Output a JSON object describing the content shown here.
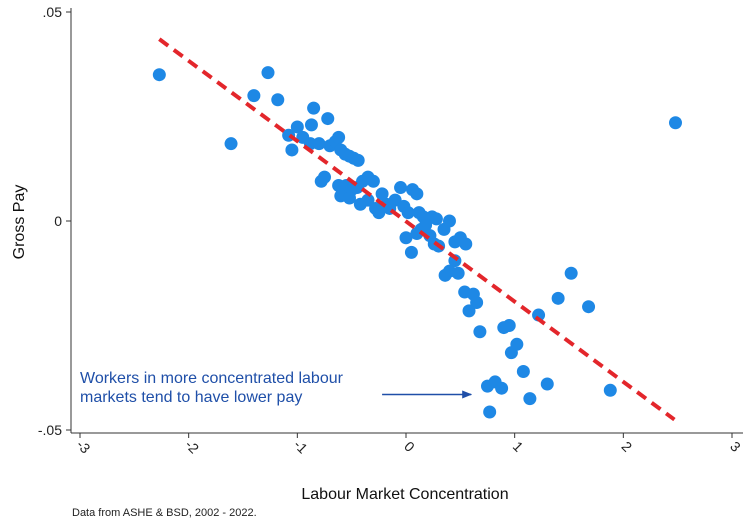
{
  "chart_data": {
    "type": "scatter",
    "xlabel": "Labour Market Concentration",
    "ylabel": "Gross Pay",
    "xlim": [
      -3,
      3
    ],
    "ylim": [
      -0.05,
      0.05
    ],
    "x_ticks": [
      -3,
      -2,
      -1,
      0,
      1,
      2,
      3
    ],
    "x_tick_labels": [
      "-3",
      "-2",
      "-1",
      "0",
      "1",
      "2",
      "3"
    ],
    "y_ticks": [
      -0.05,
      0,
      0.05
    ],
    "y_tick_labels": [
      "-.05",
      "0",
      ".05"
    ],
    "grid": false,
    "series": [
      {
        "color": "#1e88e5",
        "points": [
          [
            -2.27,
            0.035
          ],
          [
            -1.61,
            0.0185
          ],
          [
            -1.27,
            0.0355
          ],
          [
            -1.4,
            0.03
          ],
          [
            -1.18,
            0.029
          ],
          [
            -1.08,
            0.0205
          ],
          [
            -1.0,
            0.0225
          ],
          [
            -1.05,
            0.017
          ],
          [
            -0.95,
            0.02
          ],
          [
            -0.88,
            0.0185
          ],
          [
            -0.85,
            0.027
          ],
          [
            -0.87,
            0.023
          ],
          [
            -0.8,
            0.0185
          ],
          [
            -0.72,
            0.0245
          ],
          [
            -0.7,
            0.018
          ],
          [
            -0.65,
            0.019
          ],
          [
            -0.62,
            0.02
          ],
          [
            -0.6,
            0.017
          ],
          [
            -0.56,
            0.016
          ],
          [
            -0.52,
            0.0155
          ],
          [
            -0.48,
            0.015
          ],
          [
            -0.44,
            0.0145
          ],
          [
            -0.78,
            0.0095
          ],
          [
            -0.75,
            0.0105
          ],
          [
            -0.62,
            0.0085
          ],
          [
            -0.55,
            0.0085
          ],
          [
            -0.5,
            0.0075
          ],
          [
            -0.45,
            0.008
          ],
          [
            -0.4,
            0.0095
          ],
          [
            -0.35,
            0.0105
          ],
          [
            -0.3,
            0.0095
          ],
          [
            -0.6,
            0.006
          ],
          [
            -0.52,
            0.0055
          ],
          [
            -0.42,
            0.004
          ],
          [
            -0.35,
            0.005
          ],
          [
            -0.28,
            0.003
          ],
          [
            -0.22,
            0.0065
          ],
          [
            -0.18,
            0.004
          ],
          [
            -0.15,
            0.003
          ],
          [
            -0.1,
            0.005
          ],
          [
            -0.05,
            0.008
          ],
          [
            -0.02,
            0.0035
          ],
          [
            0.02,
            0.002
          ],
          [
            0.06,
            0.0075
          ],
          [
            0.1,
            0.0065
          ],
          [
            0.12,
            0.002
          ],
          [
            0.16,
            0.001
          ],
          [
            0.2,
            0.0005
          ],
          [
            0.24,
            0.001
          ],
          [
            0.28,
            0.0005
          ],
          [
            -0.25,
            0.002
          ],
          [
            0.0,
            -0.004
          ],
          [
            0.05,
            -0.0075
          ],
          [
            0.1,
            -0.003
          ],
          [
            0.14,
            -0.002
          ],
          [
            0.18,
            -0.001
          ],
          [
            0.22,
            -0.0035
          ],
          [
            0.26,
            -0.0055
          ],
          [
            0.3,
            -0.006
          ],
          [
            0.35,
            -0.002
          ],
          [
            0.4,
            0.0
          ],
          [
            0.45,
            -0.005
          ],
          [
            0.5,
            -0.004
          ],
          [
            0.55,
            -0.0055
          ],
          [
            0.45,
            -0.0095
          ],
          [
            0.4,
            -0.012
          ],
          [
            0.36,
            -0.013
          ],
          [
            0.48,
            -0.0125
          ],
          [
            0.54,
            -0.017
          ],
          [
            0.62,
            -0.0175
          ],
          [
            0.65,
            -0.0195
          ],
          [
            0.58,
            -0.0215
          ],
          [
            0.68,
            -0.0265
          ],
          [
            0.9,
            -0.0255
          ],
          [
            0.95,
            -0.025
          ],
          [
            0.97,
            -0.0315
          ],
          [
            1.02,
            -0.0295
          ],
          [
            1.22,
            -0.0225
          ],
          [
            1.4,
            -0.0185
          ],
          [
            1.52,
            -0.0125
          ],
          [
            1.68,
            -0.0205
          ],
          [
            0.75,
            -0.0395
          ],
          [
            0.82,
            -0.0385
          ],
          [
            0.88,
            -0.04
          ],
          [
            1.08,
            -0.036
          ],
          [
            1.14,
            -0.0425
          ],
          [
            1.3,
            -0.039
          ],
          [
            1.88,
            -0.0405
          ],
          [
            0.77,
            -0.0457
          ],
          [
            2.48,
            0.0235
          ]
        ]
      }
    ],
    "fit_line": {
      "color": "#e3262b",
      "style": "dashed",
      "x": [
        -2.27,
        2.47
      ],
      "y": [
        0.0435,
        -0.0475
      ]
    },
    "annotation": {
      "lines": [
        "Workers in more concentrated labour",
        "markets tend to have lower pay"
      ],
      "arrow_from": [
        -0.22,
        -0.0415
      ],
      "arrow_to": [
        0.6,
        -0.0415
      ]
    }
  },
  "source_note": "Data from ASHE & BSD, 2002 - 2022."
}
